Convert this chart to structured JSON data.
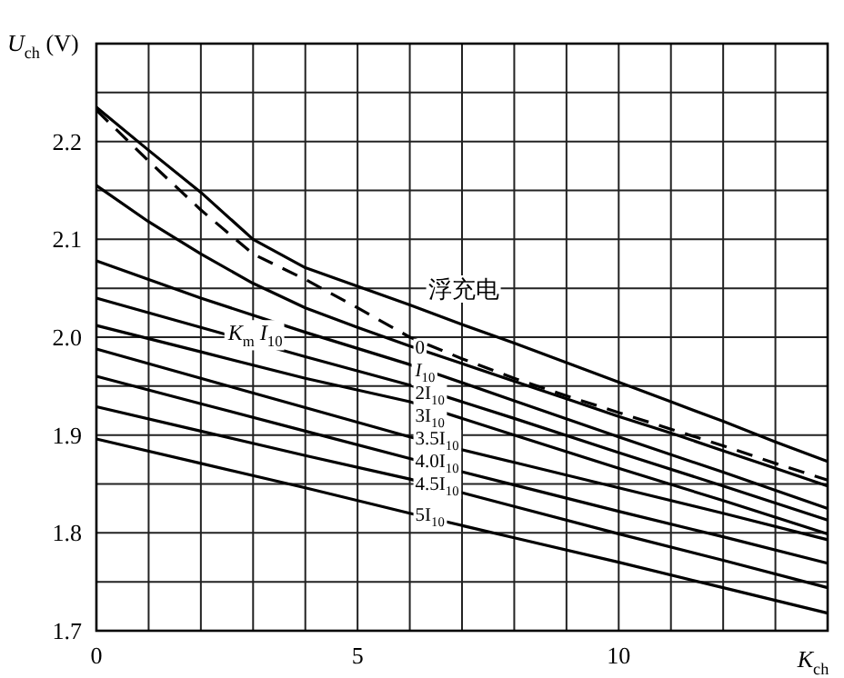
{
  "chart_data": {
    "type": "line",
    "xlabel": "*K*$_{ch}$",
    "ylabel": "*U*$_{ch}$ (V)",
    "annotations": [
      "*K*$_{m}$ *I*$_{10}$"
    ],
    "x": [
      0,
      1,
      2,
      3,
      4,
      5,
      6,
      7,
      8,
      9,
      10,
      11,
      12,
      13,
      14
    ],
    "xlim": [
      0,
      14
    ],
    "ylim": [
      1.7,
      2.3
    ],
    "xticks": [
      0,
      {
        "value": 1,
        "label": null
      },
      {
        "value": 2,
        "label": null
      },
      {
        "value": 3,
        "label": null
      },
      {
        "value": 4,
        "label": null
      },
      5,
      {
        "value": 6,
        "label": null
      },
      {
        "value": 7,
        "label": null
      },
      {
        "value": 8,
        "label": null
      },
      {
        "value": 9,
        "label": null
      },
      10,
      {
        "value": 11,
        "label": null
      },
      {
        "value": 12,
        "label": null
      },
      {
        "value": 13,
        "label": null
      },
      {
        "value": 14,
        "label": null
      }
    ],
    "yticks": [
      1.7,
      {
        "value": 1.75,
        "label": null
      },
      1.8,
      {
        "value": 1.85,
        "label": null
      },
      1.9,
      {
        "value": 1.95,
        "label": null
      },
      {
        "value": 2,
        "label": "2.0"
      },
      {
        "value": 2.05,
        "label": null
      },
      2.1,
      {
        "value": 2.15,
        "label": null
      },
      2.2,
      {
        "value": 2.25,
        "label": null
      },
      {
        "value": 2.3,
        "label": null
      }
    ],
    "grid": true,
    "series": [
      {
        "color": "#000000",
        "values": [
          2.235,
          2.191,
          2.148,
          2.1,
          2.071,
          2.052,
          2.033,
          2.013,
          1.994,
          1.974,
          1.954,
          1.934,
          1.914,
          1.893,
          1.873
        ]
      },
      {
        "name": "浮充电",
        "color": "#000000",
        "line_style": "dashed",
        "values": [
          2.232,
          2.18,
          2.13,
          2.085,
          2.059,
          2.03,
          2.0,
          1.978,
          1.958,
          1.94,
          1.923,
          1.906,
          1.889,
          1.871,
          1.854
        ]
      },
      {
        "name": "0",
        "color": "#000000",
        "values": [
          2.155,
          2.118,
          2.085,
          2.055,
          2.03,
          2.01,
          1.991,
          1.973,
          1.955,
          1.937,
          1.919,
          1.902,
          1.884,
          1.866,
          1.848
        ]
      },
      {
        "name": "*I*$_{10}$",
        "color": "#000000",
        "x": [
          0,
          2,
          4,
          6,
          8,
          10,
          12,
          14
        ],
        "values": [
          2.078,
          2.04,
          2.005,
          1.972,
          1.935,
          1.898,
          1.862,
          1.825
        ]
      },
      {
        "name": "2I$_{10}$",
        "color": "#000000",
        "x": [
          0,
          2,
          4,
          6,
          8,
          10,
          12,
          14
        ],
        "values": [
          2.04,
          2.01,
          1.98,
          1.951,
          1.917,
          1.882,
          1.848,
          1.813
        ]
      },
      {
        "name": "3I$_{10}$",
        "color": "#000000",
        "x": [
          0,
          2,
          4,
          6,
          8,
          10,
          12,
          14
        ],
        "values": [
          2.012,
          1.985,
          1.958,
          1.934,
          1.9,
          1.866,
          1.833,
          1.799
        ]
      },
      {
        "name": "3.5I$_{10}$",
        "color": "#000000",
        "x": [
          0,
          2,
          4,
          6,
          8,
          10,
          12,
          14
        ],
        "values": [
          1.988,
          1.958,
          1.928,
          1.898,
          1.872,
          1.846,
          1.82,
          1.793
        ]
      },
      {
        "name": "4.0I$_{10}$",
        "color": "#000000",
        "x": [
          0,
          2,
          4,
          6,
          8,
          10,
          12,
          14
        ],
        "values": [
          1.96,
          1.932,
          1.904,
          1.876,
          1.849,
          1.822,
          1.796,
          1.769
        ]
      },
      {
        "name": "4.5I$_{10}$",
        "color": "#000000",
        "x": [
          0,
          2,
          4,
          6,
          8,
          10,
          12,
          14
        ],
        "values": [
          1.929,
          1.904,
          1.879,
          1.855,
          1.827,
          1.799,
          1.772,
          1.744
        ]
      },
      {
        "name": "5I$_{10}$",
        "color": "#000000",
        "x": [
          0,
          2,
          4,
          6,
          8,
          10,
          12,
          14
        ],
        "values": [
          1.896,
          1.871,
          1.846,
          1.82,
          1.795,
          1.77,
          1.744,
          1.718
        ]
      }
    ]
  }
}
